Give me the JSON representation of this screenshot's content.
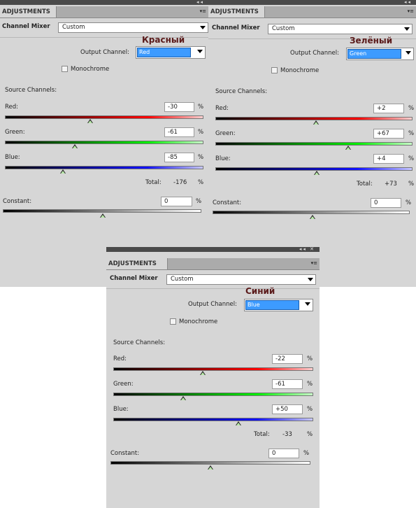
{
  "panels": [
    {
      "tab": "ADJUSTMENTS",
      "title": "Channel Mixer",
      "preset": "Custom",
      "caption": "Красный",
      "output_channel_label": "Output Channel:",
      "output_channel": "Red",
      "monochrome_label": "Monochrome",
      "monochrome": false,
      "source_channels_label": "Source Channels:",
      "red_label": "Red:",
      "red": "-30",
      "green_label": "Green:",
      "green": "-61",
      "blue_label": "Blue:",
      "blue": "-85",
      "total_label": "Total:",
      "total": "-176",
      "constant_label": "Constant:",
      "constant": "0",
      "percent": "%"
    },
    {
      "tab": "ADJUSTMENTS",
      "title": "Channel Mixer",
      "preset": "Custom",
      "caption": "Зелёный",
      "output_channel_label": "Output Channel:",
      "output_channel": "Green",
      "monochrome_label": "Monochrome",
      "monochrome": false,
      "source_channels_label": "Source Channels:",
      "red_label": "Red:",
      "red": "+2",
      "green_label": "Green:",
      "green": "+67",
      "blue_label": "Blue:",
      "blue": "+4",
      "total_label": "Total:",
      "total": "+73",
      "constant_label": "Constant:",
      "constant": "0",
      "percent": "%"
    },
    {
      "tab": "ADJUSTMENTS",
      "title": "Channel Mixer",
      "preset": "Custom",
      "caption": "Синий",
      "output_channel_label": "Output Channel:",
      "output_channel": "Blue",
      "monochrome_label": "Monochrome",
      "monochrome": false,
      "source_channels_label": "Source Channels:",
      "red_label": "Red:",
      "red": "-22",
      "green_label": "Green:",
      "green": "-61",
      "blue_label": "Blue:",
      "blue": "+50",
      "total_label": "Total:",
      "total": "-33",
      "constant_label": "Constant:",
      "constant": "0",
      "percent": "%"
    }
  ],
  "icons": {
    "collapse": "double-left-arrow-icon",
    "close": "close-icon",
    "menu": "panel-menu-icon"
  }
}
